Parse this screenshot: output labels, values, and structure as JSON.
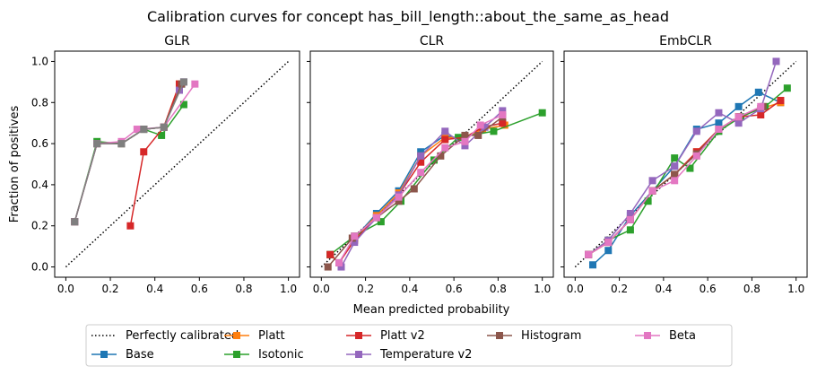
{
  "suptitle": "Calibration curves for concept has_bill_length::about_the_same_as_head",
  "xlabel": "Mean predicted probability",
  "ylabel": "Fraction of positives",
  "legend": {
    "position": "bottom-center",
    "entries": [
      {
        "key": "perfect",
        "label": "Perfectly calibrated",
        "color": "#000000",
        "style": "dotted"
      },
      {
        "key": "base",
        "label": "Base",
        "color": "#1f77b4"
      },
      {
        "key": "platt",
        "label": "Platt",
        "color": "#ff7f0e"
      },
      {
        "key": "isotonic",
        "label": "Isotonic",
        "color": "#2ca02c"
      },
      {
        "key": "plattv2",
        "label": "Platt v2",
        "color": "#d62728"
      },
      {
        "key": "tempv2",
        "label": "Temperature v2",
        "color": "#9467bd"
      },
      {
        "key": "histogram",
        "label": "Histogram",
        "color": "#8c564b"
      },
      {
        "key": "beta",
        "label": "Beta",
        "color": "#e377c2"
      }
    ]
  },
  "chart_data": [
    {
      "type": "line",
      "title": "GLR",
      "xlabel": "",
      "ylabel": "Fraction of positives",
      "xlim": [
        -0.05,
        1.05
      ],
      "ylim": [
        -0.05,
        1.05
      ],
      "xticks": [
        "0.0",
        "0.2",
        "0.4",
        "0.6",
        "0.8",
        "1.0"
      ],
      "yticks": [
        "0.0",
        "0.2",
        "0.4",
        "0.6",
        "0.8",
        "1.0"
      ],
      "grid": false,
      "series": [
        {
          "name": "Base",
          "color": "#1f77b4",
          "points": [
            [
              0.04,
              0.22
            ],
            [
              0.14,
              0.6
            ],
            [
              0.25,
              0.6
            ],
            [
              0.35,
              0.67
            ],
            [
              0.44,
              0.68
            ],
            [
              0.52,
              0.89
            ]
          ]
        },
        {
          "name": "Platt",
          "color": "#ff7f0e",
          "points": [
            [
              0.04,
              0.22
            ],
            [
              0.14,
              0.6
            ],
            [
              0.25,
              0.6
            ],
            [
              0.35,
              0.67
            ],
            [
              0.44,
              0.68
            ],
            [
              0.51,
              0.89
            ]
          ]
        },
        {
          "name": "Isotonic",
          "color": "#2ca02c",
          "points": [
            [
              0.04,
              0.22
            ],
            [
              0.14,
              0.61
            ],
            [
              0.25,
              0.6
            ],
            [
              0.35,
              0.67
            ],
            [
              0.43,
              0.64
            ],
            [
              0.53,
              0.79
            ]
          ]
        },
        {
          "name": "Platt v2",
          "color": "#d62728",
          "points": [
            [
              0.29,
              0.2
            ],
            [
              0.35,
              0.56
            ],
            [
              0.44,
              0.68
            ],
            [
              0.51,
              0.89
            ]
          ]
        },
        {
          "name": "Temperature v2",
          "color": "#9467bd",
          "points": [
            [
              0.04,
              0.22
            ],
            [
              0.14,
              0.6
            ],
            [
              0.25,
              0.6
            ],
            [
              0.35,
              0.67
            ],
            [
              0.44,
              0.68
            ],
            [
              0.51,
              0.86
            ],
            [
              0.53,
              0.9
            ]
          ]
        },
        {
          "name": "Histogram",
          "color": "#8c564b",
          "points": [
            [
              0.04,
              0.22
            ],
            [
              0.14,
              0.6
            ],
            [
              0.25,
              0.6
            ],
            [
              0.35,
              0.67
            ],
            [
              0.44,
              0.68
            ],
            [
              0.52,
              0.89
            ]
          ]
        },
        {
          "name": "Beta",
          "color": "#e377c2",
          "points": [
            [
              0.04,
              0.22
            ],
            [
              0.14,
              0.6
            ],
            [
              0.25,
              0.61
            ],
            [
              0.32,
              0.67
            ],
            [
              0.44,
              0.68
            ],
            [
              0.58,
              0.89
            ]
          ]
        },
        {
          "name": "Histogram (gray)",
          "color": "#7f7f7f",
          "points": [
            [
              0.04,
              0.22
            ],
            [
              0.14,
              0.6
            ],
            [
              0.25,
              0.6
            ],
            [
              0.35,
              0.67
            ],
            [
              0.44,
              0.68
            ],
            [
              0.53,
              0.9
            ]
          ]
        }
      ]
    },
    {
      "type": "line",
      "title": "CLR",
      "xlabel": "Mean predicted probability",
      "ylabel": "",
      "xlim": [
        -0.05,
        1.05
      ],
      "ylim": [
        -0.05,
        1.05
      ],
      "xticks": [
        "0.0",
        "0.2",
        "0.4",
        "0.6",
        "0.8",
        "1.0"
      ],
      "yticks": [],
      "grid": false,
      "series": [
        {
          "name": "Base",
          "color": "#1f77b4",
          "points": [
            [
              0.04,
              0.06
            ],
            [
              0.08,
              0.02
            ],
            [
              0.15,
              0.14
            ],
            [
              0.25,
              0.26
            ],
            [
              0.35,
              0.37
            ],
            [
              0.45,
              0.56
            ],
            [
              0.56,
              0.64
            ],
            [
              0.65,
              0.62
            ],
            [
              0.73,
              0.68
            ],
            [
              0.82,
              0.7
            ]
          ]
        },
        {
          "name": "Platt",
          "color": "#ff7f0e",
          "points": [
            [
              0.04,
              0.06
            ],
            [
              0.08,
              0.02
            ],
            [
              0.15,
              0.14
            ],
            [
              0.25,
              0.25
            ],
            [
              0.35,
              0.36
            ],
            [
              0.45,
              0.54
            ],
            [
              0.56,
              0.63
            ],
            [
              0.65,
              0.63
            ],
            [
              0.73,
              0.67
            ],
            [
              0.83,
              0.69
            ]
          ]
        },
        {
          "name": "Isotonic",
          "color": "#2ca02c",
          "points": [
            [
              0.04,
              0.06
            ],
            [
              0.15,
              0.15
            ],
            [
              0.27,
              0.22
            ],
            [
              0.36,
              0.32
            ],
            [
              0.51,
              0.52
            ],
            [
              0.62,
              0.63
            ],
            [
              0.78,
              0.66
            ],
            [
              1.0,
              0.75
            ]
          ]
        },
        {
          "name": "Platt v2",
          "color": "#d62728",
          "points": [
            [
              0.04,
              0.06
            ],
            [
              0.08,
              0.02
            ],
            [
              0.15,
              0.13
            ],
            [
              0.25,
              0.24
            ],
            [
              0.35,
              0.35
            ],
            [
              0.45,
              0.51
            ],
            [
              0.56,
              0.62
            ],
            [
              0.65,
              0.63
            ],
            [
              0.73,
              0.68
            ],
            [
              0.82,
              0.7
            ]
          ]
        },
        {
          "name": "Temperature v2",
          "color": "#9467bd",
          "points": [
            [
              0.09,
              0.0
            ],
            [
              0.15,
              0.12
            ],
            [
              0.25,
              0.24
            ],
            [
              0.35,
              0.35
            ],
            [
              0.45,
              0.54
            ],
            [
              0.56,
              0.66
            ],
            [
              0.65,
              0.59
            ],
            [
              0.74,
              0.68
            ],
            [
              0.82,
              0.76
            ]
          ]
        },
        {
          "name": "Histogram",
          "color": "#8c564b",
          "points": [
            [
              0.03,
              0.0
            ],
            [
              0.14,
              0.14
            ],
            [
              0.25,
              0.24
            ],
            [
              0.35,
              0.32
            ],
            [
              0.42,
              0.38
            ],
            [
              0.54,
              0.54
            ],
            [
              0.65,
              0.64
            ],
            [
              0.71,
              0.64
            ],
            [
              0.82,
              0.73
            ]
          ]
        },
        {
          "name": "Beta",
          "color": "#e377c2",
          "points": [
            [
              0.08,
              0.02
            ],
            [
              0.15,
              0.15
            ],
            [
              0.25,
              0.24
            ],
            [
              0.35,
              0.34
            ],
            [
              0.45,
              0.46
            ],
            [
              0.56,
              0.58
            ],
            [
              0.65,
              0.61
            ],
            [
              0.72,
              0.69
            ],
            [
              0.82,
              0.74
            ]
          ]
        }
      ]
    },
    {
      "type": "line",
      "title": "EmbCLR",
      "xlabel": "",
      "ylabel": "",
      "xlim": [
        -0.05,
        1.05
      ],
      "ylim": [
        -0.05,
        1.05
      ],
      "xticks": [
        "0.0",
        "0.2",
        "0.4",
        "0.6",
        "0.8",
        "1.0"
      ],
      "yticks": [],
      "grid": false,
      "series": [
        {
          "name": "Base",
          "color": "#1f77b4",
          "points": [
            [
              0.08,
              0.01
            ],
            [
              0.15,
              0.08
            ],
            [
              0.25,
              0.25
            ],
            [
              0.35,
              0.37
            ],
            [
              0.45,
              0.49
            ],
            [
              0.55,
              0.67
            ],
            [
              0.65,
              0.7
            ],
            [
              0.74,
              0.78
            ],
            [
              0.83,
              0.85
            ],
            [
              0.93,
              0.8
            ]
          ]
        },
        {
          "name": "Platt",
          "color": "#ff7f0e",
          "points": [
            [
              0.06,
              0.06
            ],
            [
              0.15,
              0.12
            ],
            [
              0.25,
              0.23
            ],
            [
              0.35,
              0.37
            ],
            [
              0.45,
              0.45
            ],
            [
              0.55,
              0.56
            ],
            [
              0.65,
              0.67
            ],
            [
              0.74,
              0.73
            ],
            [
              0.84,
              0.77
            ],
            [
              0.93,
              0.8
            ]
          ]
        },
        {
          "name": "Isotonic",
          "color": "#2ca02c",
          "points": [
            [
              0.06,
              0.06
            ],
            [
              0.15,
              0.13
            ],
            [
              0.25,
              0.18
            ],
            [
              0.33,
              0.32
            ],
            [
              0.45,
              0.53
            ],
            [
              0.52,
              0.48
            ],
            [
              0.65,
              0.66
            ],
            [
              0.75,
              0.73
            ],
            [
              0.86,
              0.78
            ],
            [
              0.96,
              0.87
            ]
          ]
        },
        {
          "name": "Platt v2",
          "color": "#d62728",
          "points": [
            [
              0.06,
              0.06
            ],
            [
              0.15,
              0.12
            ],
            [
              0.25,
              0.23
            ],
            [
              0.35,
              0.37
            ],
            [
              0.45,
              0.45
            ],
            [
              0.55,
              0.56
            ],
            [
              0.65,
              0.67
            ],
            [
              0.74,
              0.73
            ],
            [
              0.84,
              0.74
            ],
            [
              0.93,
              0.81
            ]
          ]
        },
        {
          "name": "Temperature v2",
          "color": "#9467bd",
          "points": [
            [
              0.06,
              0.06
            ],
            [
              0.15,
              0.13
            ],
            [
              0.25,
              0.26
            ],
            [
              0.35,
              0.42
            ],
            [
              0.45,
              0.49
            ],
            [
              0.55,
              0.66
            ],
            [
              0.65,
              0.75
            ],
            [
              0.74,
              0.7
            ],
            [
              0.84,
              0.77
            ],
            [
              0.91,
              1.0
            ]
          ]
        },
        {
          "name": "Histogram",
          "color": "#8c564b",
          "points": [
            [
              0.06,
              0.06
            ],
            [
              0.15,
              0.12
            ],
            [
              0.25,
              0.23
            ],
            [
              0.35,
              0.37
            ],
            [
              0.45,
              0.45
            ],
            [
              0.55,
              0.55
            ],
            [
              0.65,
              0.67
            ],
            [
              0.74,
              0.73
            ],
            [
              0.85,
              0.78
            ]
          ]
        },
        {
          "name": "Beta",
          "color": "#e377c2",
          "points": [
            [
              0.06,
              0.06
            ],
            [
              0.15,
              0.12
            ],
            [
              0.25,
              0.23
            ],
            [
              0.35,
              0.37
            ],
            [
              0.45,
              0.42
            ],
            [
              0.55,
              0.54
            ],
            [
              0.65,
              0.67
            ],
            [
              0.74,
              0.73
            ],
            [
              0.84,
              0.78
            ]
          ]
        }
      ]
    }
  ]
}
